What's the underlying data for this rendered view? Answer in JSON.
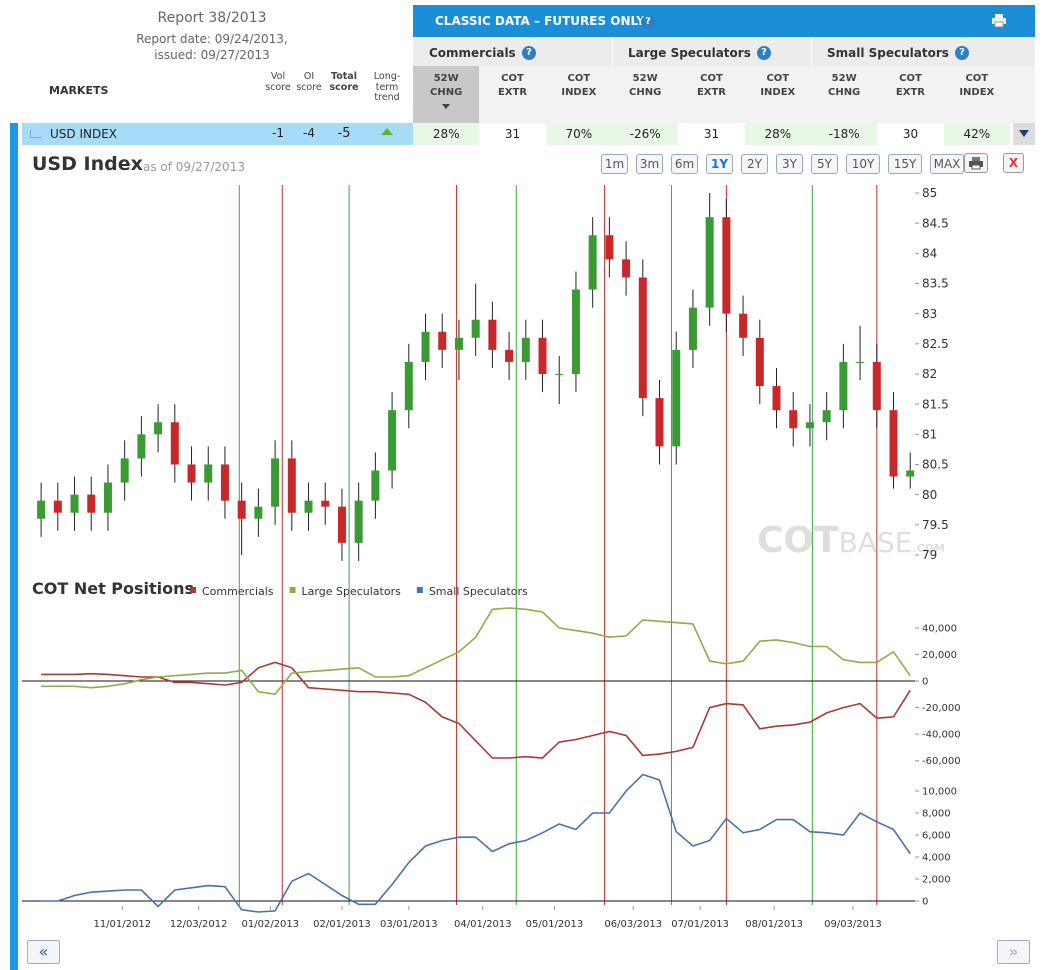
{
  "header": {
    "report": "Report 38/2013",
    "report_date": "Report date: 09/24/2013,",
    "issued": "issued: 09/27/2013"
  },
  "help": "?",
  "table": {
    "title": "CLASSIC DATA – FUTURES ONLY",
    "markets_label": "MARKETS",
    "score_headers": [
      "Vol score",
      "OI score",
      "Total score",
      "Long-term trend"
    ],
    "groups": [
      "Commercials",
      "Large Speculators",
      "Small Speculators"
    ],
    "columns": [
      [
        "52W",
        "CHNG"
      ],
      [
        "COT",
        "EXTR"
      ],
      [
        "COT",
        "INDEX"
      ]
    ],
    "sorted_column": 0,
    "rows": [
      {
        "market": "USD INDEX",
        "scores": [
          "-1",
          "-4",
          "-5"
        ],
        "trend": "up",
        "cells": [
          "28%",
          "31",
          "70%",
          "-26%",
          "31",
          "28%",
          "-18%",
          "30",
          "42%"
        ]
      }
    ]
  },
  "toolbar": {
    "title": "USD Index",
    "as_of": "as of 09/27/2013",
    "ranges": [
      "1m",
      "3m",
      "6m",
      "1Y",
      "2Y",
      "3Y",
      "5Y",
      "10Y",
      "15Y",
      "MAX"
    ],
    "active": "1Y",
    "close": "X"
  },
  "pager": {
    "prev": "«",
    "next": "»"
  },
  "chart_data": [
    {
      "type": "candlestick",
      "watermark": [
        "COT",
        "BASE",
        ".COM"
      ],
      "x": [
        "2012-09-28",
        "2012-10-05",
        "2012-10-12",
        "2012-10-19",
        "2012-10-26",
        "2012-11-02",
        "2012-11-09",
        "2012-11-16",
        "2012-11-23",
        "2012-11-30",
        "2012-12-07",
        "2012-12-14",
        "2012-12-21",
        "2012-12-28",
        "2013-01-04",
        "2013-01-11",
        "2013-01-18",
        "2013-01-25",
        "2013-02-01",
        "2013-02-08",
        "2013-02-15",
        "2013-02-22",
        "2013-03-01",
        "2013-03-08",
        "2013-03-15",
        "2013-03-22",
        "2013-03-29",
        "2013-04-05",
        "2013-04-12",
        "2013-04-19",
        "2013-04-26",
        "2013-05-03",
        "2013-05-10",
        "2013-05-17",
        "2013-05-24",
        "2013-05-31",
        "2013-06-07",
        "2013-06-14",
        "2013-06-21",
        "2013-06-28",
        "2013-07-05",
        "2013-07-12",
        "2013-07-19",
        "2013-07-26",
        "2013-08-02",
        "2013-08-09",
        "2013-08-16",
        "2013-08-23",
        "2013-08-30",
        "2013-09-06",
        "2013-09-13",
        "2013-09-20",
        "2013-09-27"
      ],
      "open": [
        79.6,
        79.9,
        79.7,
        80.0,
        79.7,
        80.2,
        80.6,
        81.0,
        81.2,
        80.5,
        80.2,
        80.5,
        79.9,
        79.6,
        79.8,
        80.6,
        79.7,
        79.9,
        79.8,
        79.2,
        79.9,
        80.4,
        81.4,
        82.2,
        82.7,
        82.4,
        82.6,
        82.9,
        82.4,
        82.2,
        82.6,
        82.0,
        82.0,
        83.4,
        84.3,
        83.9,
        83.6,
        81.6,
        80.8,
        82.4,
        83.1,
        84.6,
        83.0,
        82.6,
        81.8,
        81.4,
        81.1,
        81.2,
        81.4,
        82.2,
        82.2,
        81.4,
        80.3
      ],
      "high": [
        80.2,
        80.2,
        80.3,
        80.3,
        80.5,
        80.9,
        81.3,
        81.5,
        81.5,
        80.8,
        80.8,
        80.8,
        80.2,
        80.1,
        80.9,
        80.9,
        80.2,
        80.2,
        80.1,
        80.2,
        80.7,
        81.7,
        82.5,
        83.0,
        83.0,
        82.9,
        83.5,
        83.2,
        82.7,
        82.9,
        82.9,
        82.3,
        83.7,
        84.6,
        84.6,
        84.2,
        83.9,
        81.9,
        82.7,
        83.4,
        85.0,
        84.9,
        83.3,
        82.9,
        82.1,
        81.7,
        81.5,
        81.7,
        82.5,
        82.8,
        82.5,
        81.7,
        80.7
      ],
      "low": [
        79.3,
        79.4,
        79.4,
        79.4,
        79.4,
        79.9,
        80.3,
        80.7,
        80.2,
        79.9,
        79.9,
        79.6,
        79.0,
        79.3,
        79.5,
        79.4,
        79.4,
        79.5,
        78.9,
        78.9,
        79.6,
        80.1,
        81.1,
        81.9,
        82.1,
        81.9,
        82.3,
        82.1,
        81.9,
        81.9,
        81.7,
        81.5,
        81.7,
        83.1,
        83.6,
        83.3,
        81.3,
        80.5,
        80.5,
        82.1,
        82.8,
        82.7,
        82.3,
        81.5,
        81.1,
        80.8,
        80.8,
        80.9,
        81.1,
        81.9,
        81.1,
        80.1,
        80.1
      ],
      "close": [
        79.9,
        79.7,
        80.0,
        79.7,
        80.2,
        80.6,
        81.0,
        81.2,
        80.5,
        80.2,
        80.5,
        79.9,
        79.6,
        79.8,
        80.6,
        79.7,
        79.9,
        79.8,
        79.2,
        79.9,
        80.4,
        81.4,
        82.2,
        82.7,
        82.4,
        82.6,
        82.9,
        82.4,
        82.2,
        82.6,
        82.0,
        82.0,
        83.4,
        84.3,
        83.9,
        83.6,
        81.6,
        80.8,
        82.4,
        83.1,
        84.6,
        83.0,
        82.6,
        81.8,
        81.4,
        81.1,
        81.2,
        81.4,
        82.2,
        82.2,
        81.4,
        80.3,
        80.4
      ],
      "up_color": "#3a9a34",
      "down_color": "#c8282a",
      "xlim": [
        "2012-09-20",
        "2013-09-29"
      ],
      "ylim": [
        78.8,
        85.15
      ],
      "yticks": [
        79,
        79.5,
        80,
        80.5,
        81,
        81.5,
        82,
        82.5,
        83,
        83.5,
        84,
        84.5,
        85
      ],
      "signals": [
        {
          "color": "#c0302c",
          "x": [
            "2013-01-07",
            "2013-03-21",
            "2013-05-22",
            "2013-07-12",
            "2013-09-13"
          ]
        },
        {
          "color": "#3aa83a",
          "x": [
            "2012-12-20",
            "2013-02-04",
            "2013-04-15",
            "2013-06-19",
            "2013-08-17"
          ]
        }
      ]
    },
    {
      "type": "line",
      "title": "COT Net Positions",
      "x": [
        "2012-09-28",
        "2012-10-05",
        "2012-10-12",
        "2012-10-19",
        "2012-10-26",
        "2012-11-02",
        "2012-11-09",
        "2012-11-16",
        "2012-11-23",
        "2012-11-30",
        "2012-12-07",
        "2012-12-14",
        "2012-12-21",
        "2012-12-28",
        "2013-01-04",
        "2013-01-11",
        "2013-01-18",
        "2013-01-25",
        "2013-02-01",
        "2013-02-08",
        "2013-02-15",
        "2013-02-22",
        "2013-03-01",
        "2013-03-08",
        "2013-03-15",
        "2013-03-22",
        "2013-03-29",
        "2013-04-05",
        "2013-04-12",
        "2013-04-19",
        "2013-04-26",
        "2013-05-03",
        "2013-05-10",
        "2013-05-17",
        "2013-05-24",
        "2013-05-31",
        "2013-06-07",
        "2013-06-14",
        "2013-06-21",
        "2013-06-28",
        "2013-07-05",
        "2013-07-12",
        "2013-07-19",
        "2013-07-26",
        "2013-08-02",
        "2013-08-09",
        "2013-08-16",
        "2013-08-23",
        "2013-08-30",
        "2013-09-06",
        "2013-09-13",
        "2013-09-20",
        "2013-09-27"
      ],
      "series": [
        {
          "name": "Commercials",
          "color": "#a83a34",
          "values": [
            5000,
            5000,
            5000,
            5500,
            5000,
            4000,
            3000,
            3000,
            -1000,
            -1000,
            -2000,
            -3000,
            -1000,
            10000,
            14000,
            10000,
            -5000,
            -6000,
            -7000,
            -8000,
            -8000,
            -9000,
            -10000,
            -16000,
            -27000,
            -32000,
            -45000,
            -58000,
            -58000,
            -57000,
            -58000,
            -46000,
            -44000,
            -41000,
            -38000,
            -41000,
            -56000,
            -55000,
            -53000,
            -50000,
            -20000,
            -17000,
            -18000,
            -36000,
            -34000,
            -33000,
            -31000,
            -24000,
            -20000,
            -17000,
            -28000,
            -27000,
            -7000
          ]
        },
        {
          "name": "Large Speculators",
          "color": "#8fac4a",
          "values": [
            -4000,
            -4000,
            -4000,
            -5000,
            -4000,
            -2000,
            1000,
            3000,
            4000,
            5000,
            6000,
            6000,
            8000,
            -8000,
            -10000,
            6000,
            7000,
            8000,
            9000,
            10000,
            3000,
            3000,
            4000,
            10000,
            16000,
            22000,
            33000,
            54000,
            55000,
            54000,
            52000,
            40000,
            38000,
            36000,
            33000,
            34000,
            46000,
            45000,
            44000,
            43000,
            15000,
            13000,
            15000,
            30000,
            31000,
            29000,
            26000,
            26000,
            16000,
            14000,
            14000,
            22000,
            4000
          ]
        },
        {
          "name": "Small Speculators",
          "color": "#4a72ac",
          "axis": "y2",
          "values": [
            0,
            0,
            500,
            800,
            900,
            1000,
            1000,
            -500,
            1000,
            1200,
            1400,
            1300,
            -800,
            -1000,
            -900,
            1800,
            2500,
            1500,
            500,
            -300,
            -300,
            1500,
            3500,
            5000,
            5500,
            5800,
            5800,
            4500,
            5200,
            5500,
            6200,
            7000,
            6500,
            8000,
            8000,
            10000,
            11500,
            11000,
            6300,
            5000,
            5500,
            7500,
            6200,
            6500,
            7400,
            7400,
            6300,
            6200,
            6000,
            8000,
            7200,
            6500,
            4300
          ]
        }
      ],
      "xlim": [
        "2012-09-20",
        "2013-09-29"
      ],
      "xticks": [
        {
          "value": "2012-11-01",
          "label": "11/01/2012"
        },
        {
          "value": "2012-12-03",
          "label": "12/03/2012"
        },
        {
          "value": "2013-01-02",
          "label": "01/02/2013"
        },
        {
          "value": "2013-02-01",
          "label": "02/01/2013"
        },
        {
          "value": "2013-03-01",
          "label": "03/01/2013"
        },
        {
          "value": "2013-04-01",
          "label": "04/01/2013"
        },
        {
          "value": "2013-05-01",
          "label": "05/01/2013"
        },
        {
          "value": "2013-06-03",
          "label": "06/03/2013"
        },
        {
          "value": "2013-07-01",
          "label": "07/01/2013"
        },
        {
          "value": "2013-08-01",
          "label": "08/01/2013"
        },
        {
          "value": "2013-09-03",
          "label": "09/03/2013"
        }
      ],
      "ylim": [
        -67000,
        55000
      ],
      "yticks": [
        {
          "value": 40000,
          "label": "40,000"
        },
        {
          "value": 20000,
          "label": "20,000"
        },
        0,
        {
          "value": -20000,
          "label": "-20,000"
        },
        {
          "value": -40000,
          "label": "-40,000"
        },
        {
          "value": -60000,
          "label": "-60,000"
        }
      ],
      "y2lim": [
        -1000,
        12000
      ],
      "y2ticks": [
        {
          "value": 10000,
          "label": "10,000"
        },
        {
          "value": 8000,
          "label": "8,000"
        },
        {
          "value": 6000,
          "label": "6,000"
        },
        {
          "value": 4000,
          "label": "4,000"
        },
        {
          "value": 2000,
          "label": "2,000"
        },
        0
      ]
    }
  ]
}
